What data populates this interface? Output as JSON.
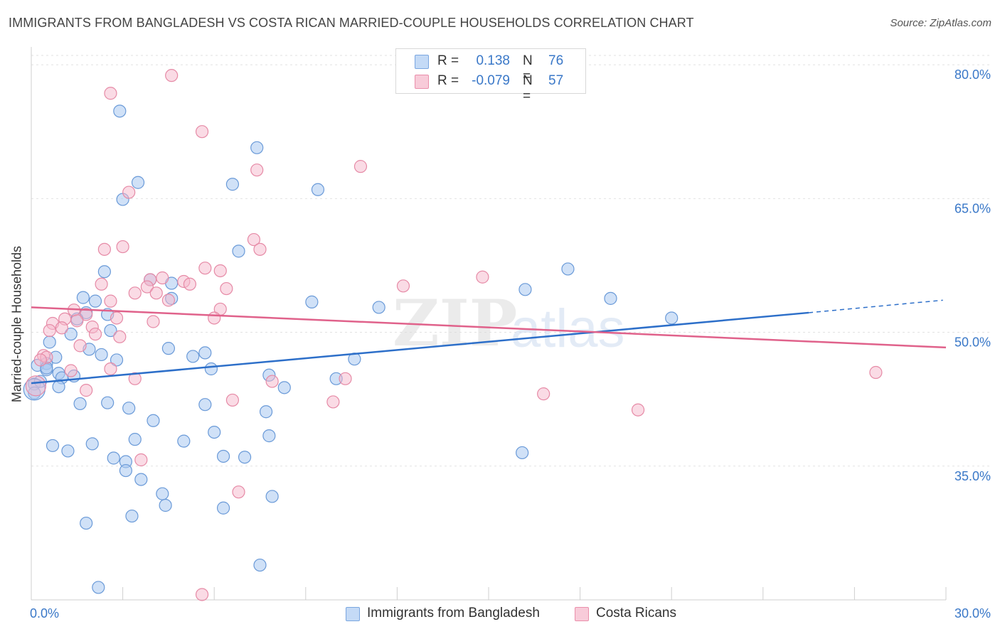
{
  "title": "IMMIGRANTS FROM BANGLADESH VS COSTA RICAN MARRIED-COUPLE HOUSEHOLDS CORRELATION CHART",
  "source": "Source: ZipAtlas.com",
  "watermark": {
    "zip": "ZIP",
    "atlas": "atlas"
  },
  "legend": {
    "rows": [
      {
        "r_label": "R =",
        "r_value": "0.138",
        "n_label": "N =",
        "n_value": "76",
        "color": "#a9c8f0"
      },
      {
        "r_label": "R =",
        "r_value": "-0.079",
        "n_label": "N =",
        "n_value": "57",
        "color": "#f5b8cb"
      }
    ]
  },
  "bottom_legend": [
    {
      "label": "Immigrants from Bangladesh",
      "color": "#a9c8f0"
    },
    {
      "label": "Costa Ricans",
      "color": "#f5b8cb"
    }
  ],
  "chart_data": {
    "type": "scatter",
    "title": "IMMIGRANTS FROM BANGLADESH VS COSTA RICAN MARRIED-COUPLE HOUSEHOLDS CORRELATION CHART",
    "xlabel": "",
    "ylabel": "Married-couple Households",
    "xlim": [
      0,
      30
    ],
    "ylim": [
      20,
      82
    ],
    "x_ticks": [
      "0.0%",
      "30.0%"
    ],
    "y_ticks": [
      {
        "value": 35,
        "label": "35.0%"
      },
      {
        "value": 50,
        "label": "50.0%"
      },
      {
        "value": 65,
        "label": "65.0%"
      },
      {
        "value": 80,
        "label": "80.0%"
      }
    ],
    "grid": true,
    "legend_position": "top-center",
    "series": [
      {
        "name": "Immigrants from Bangladesh",
        "color": "#3a78c8",
        "fill": "#a9c8f0",
        "trend": {
          "x0": 0,
          "y0": 44.3,
          "x1": 25.5,
          "y1": 52.2,
          "x_dash_end": 29.9,
          "y_dash_end": 53.6
        },
        "points": [
          [
            2.9,
            74.8
          ],
          [
            7.4,
            70.7
          ],
          [
            3.5,
            66.8
          ],
          [
            6.6,
            66.6
          ],
          [
            9.4,
            66.0
          ],
          [
            3.0,
            64.9
          ],
          [
            6.8,
            59.1
          ],
          [
            2.4,
            56.8
          ],
          [
            17.6,
            57.1
          ],
          [
            3.9,
            55.9
          ],
          [
            4.6,
            55.5
          ],
          [
            16.2,
            54.8
          ],
          [
            1.7,
            53.9
          ],
          [
            4.6,
            53.8
          ],
          [
            19.0,
            53.8
          ],
          [
            2.1,
            53.5
          ],
          [
            9.2,
            53.4
          ],
          [
            11.4,
            52.8
          ],
          [
            1.8,
            52.2
          ],
          [
            2.5,
            52.0
          ],
          [
            1.5,
            51.5
          ],
          [
            21.0,
            51.6
          ],
          [
            2.6,
            50.2
          ],
          [
            0.6,
            48.9
          ],
          [
            1.3,
            49.8
          ],
          [
            4.5,
            48.2
          ],
          [
            1.9,
            48.1
          ],
          [
            2.3,
            47.5
          ],
          [
            0.8,
            47.2
          ],
          [
            5.3,
            47.3
          ],
          [
            5.7,
            47.7
          ],
          [
            2.8,
            46.9
          ],
          [
            0.5,
            46.5
          ],
          [
            0.2,
            46.3
          ],
          [
            10.6,
            47.0
          ],
          [
            0.5,
            45.8
          ],
          [
            5.9,
            45.9
          ],
          [
            0.9,
            45.4
          ],
          [
            1.0,
            44.9
          ],
          [
            1.4,
            45.1
          ],
          [
            7.8,
            45.2
          ],
          [
            10.0,
            44.8
          ],
          [
            0.1,
            44.2
          ],
          [
            0.9,
            43.9
          ],
          [
            8.3,
            43.8
          ],
          [
            1.6,
            42.0
          ],
          [
            2.5,
            42.1
          ],
          [
            3.2,
            41.5
          ],
          [
            5.7,
            41.9
          ],
          [
            7.7,
            41.1
          ],
          [
            4.0,
            40.1
          ],
          [
            6.0,
            38.8
          ],
          [
            3.4,
            38.0
          ],
          [
            5.0,
            37.8
          ],
          [
            7.8,
            38.4
          ],
          [
            0.7,
            37.3
          ],
          [
            2.0,
            37.5
          ],
          [
            1.2,
            36.7
          ],
          [
            6.3,
            36.1
          ],
          [
            7.0,
            36.0
          ],
          [
            16.1,
            36.5
          ],
          [
            2.7,
            35.9
          ],
          [
            3.1,
            35.5
          ],
          [
            3.1,
            34.5
          ],
          [
            3.6,
            33.5
          ],
          [
            4.3,
            31.9
          ],
          [
            7.9,
            31.6
          ],
          [
            4.4,
            30.6
          ],
          [
            6.3,
            30.3
          ],
          [
            3.3,
            29.4
          ],
          [
            1.8,
            28.6
          ],
          [
            7.5,
            23.9
          ],
          [
            2.2,
            21.4
          ],
          [
            0.1,
            43.2
          ],
          [
            0.3,
            44.5
          ],
          [
            0.5,
            46.0
          ]
        ]
      },
      {
        "name": "Costa Ricans",
        "color": "#e5698f",
        "fill": "#f5b8cb",
        "trend": {
          "x0": 0,
          "y0": 52.8,
          "x1": 30,
          "y1": 48.3
        },
        "points": [
          [
            4.6,
            78.8
          ],
          [
            2.6,
            76.8
          ],
          [
            5.6,
            72.5
          ],
          [
            10.8,
            68.6
          ],
          [
            7.4,
            68.2
          ],
          [
            3.2,
            65.7
          ],
          [
            7.3,
            60.4
          ],
          [
            3.0,
            59.6
          ],
          [
            2.4,
            59.3
          ],
          [
            7.5,
            59.3
          ],
          [
            5.7,
            57.2
          ],
          [
            6.2,
            56.9
          ],
          [
            14.8,
            56.2
          ],
          [
            4.3,
            56.1
          ],
          [
            3.9,
            55.9
          ],
          [
            5.0,
            55.7
          ],
          [
            5.2,
            55.4
          ],
          [
            2.3,
            55.4
          ],
          [
            12.2,
            55.2
          ],
          [
            3.8,
            55.1
          ],
          [
            6.4,
            54.9
          ],
          [
            3.4,
            54.4
          ],
          [
            4.1,
            54.4
          ],
          [
            4.5,
            53.6
          ],
          [
            2.6,
            53.5
          ],
          [
            1.4,
            52.5
          ],
          [
            6.2,
            52.6
          ],
          [
            1.8,
            52.0
          ],
          [
            2.8,
            51.6
          ],
          [
            1.1,
            51.5
          ],
          [
            6.0,
            51.6
          ],
          [
            1.5,
            51.3
          ],
          [
            4.0,
            51.2
          ],
          [
            0.7,
            51.0
          ],
          [
            2.0,
            50.6
          ],
          [
            1.0,
            50.5
          ],
          [
            0.6,
            50.2
          ],
          [
            2.1,
            49.8
          ],
          [
            2.9,
            49.5
          ],
          [
            1.6,
            48.5
          ],
          [
            0.4,
            47.4
          ],
          [
            0.5,
            47.2
          ],
          [
            0.3,
            46.9
          ],
          [
            2.6,
            45.9
          ],
          [
            1.3,
            45.7
          ],
          [
            3.4,
            44.8
          ],
          [
            7.9,
            44.5
          ],
          [
            10.3,
            44.8
          ],
          [
            1.8,
            43.5
          ],
          [
            16.8,
            43.1
          ],
          [
            6.6,
            42.4
          ],
          [
            9.9,
            42.2
          ],
          [
            19.9,
            41.3
          ],
          [
            27.7,
            45.5
          ],
          [
            3.6,
            35.7
          ],
          [
            6.8,
            32.1
          ],
          [
            5.6,
            20.6
          ]
        ]
      }
    ]
  }
}
